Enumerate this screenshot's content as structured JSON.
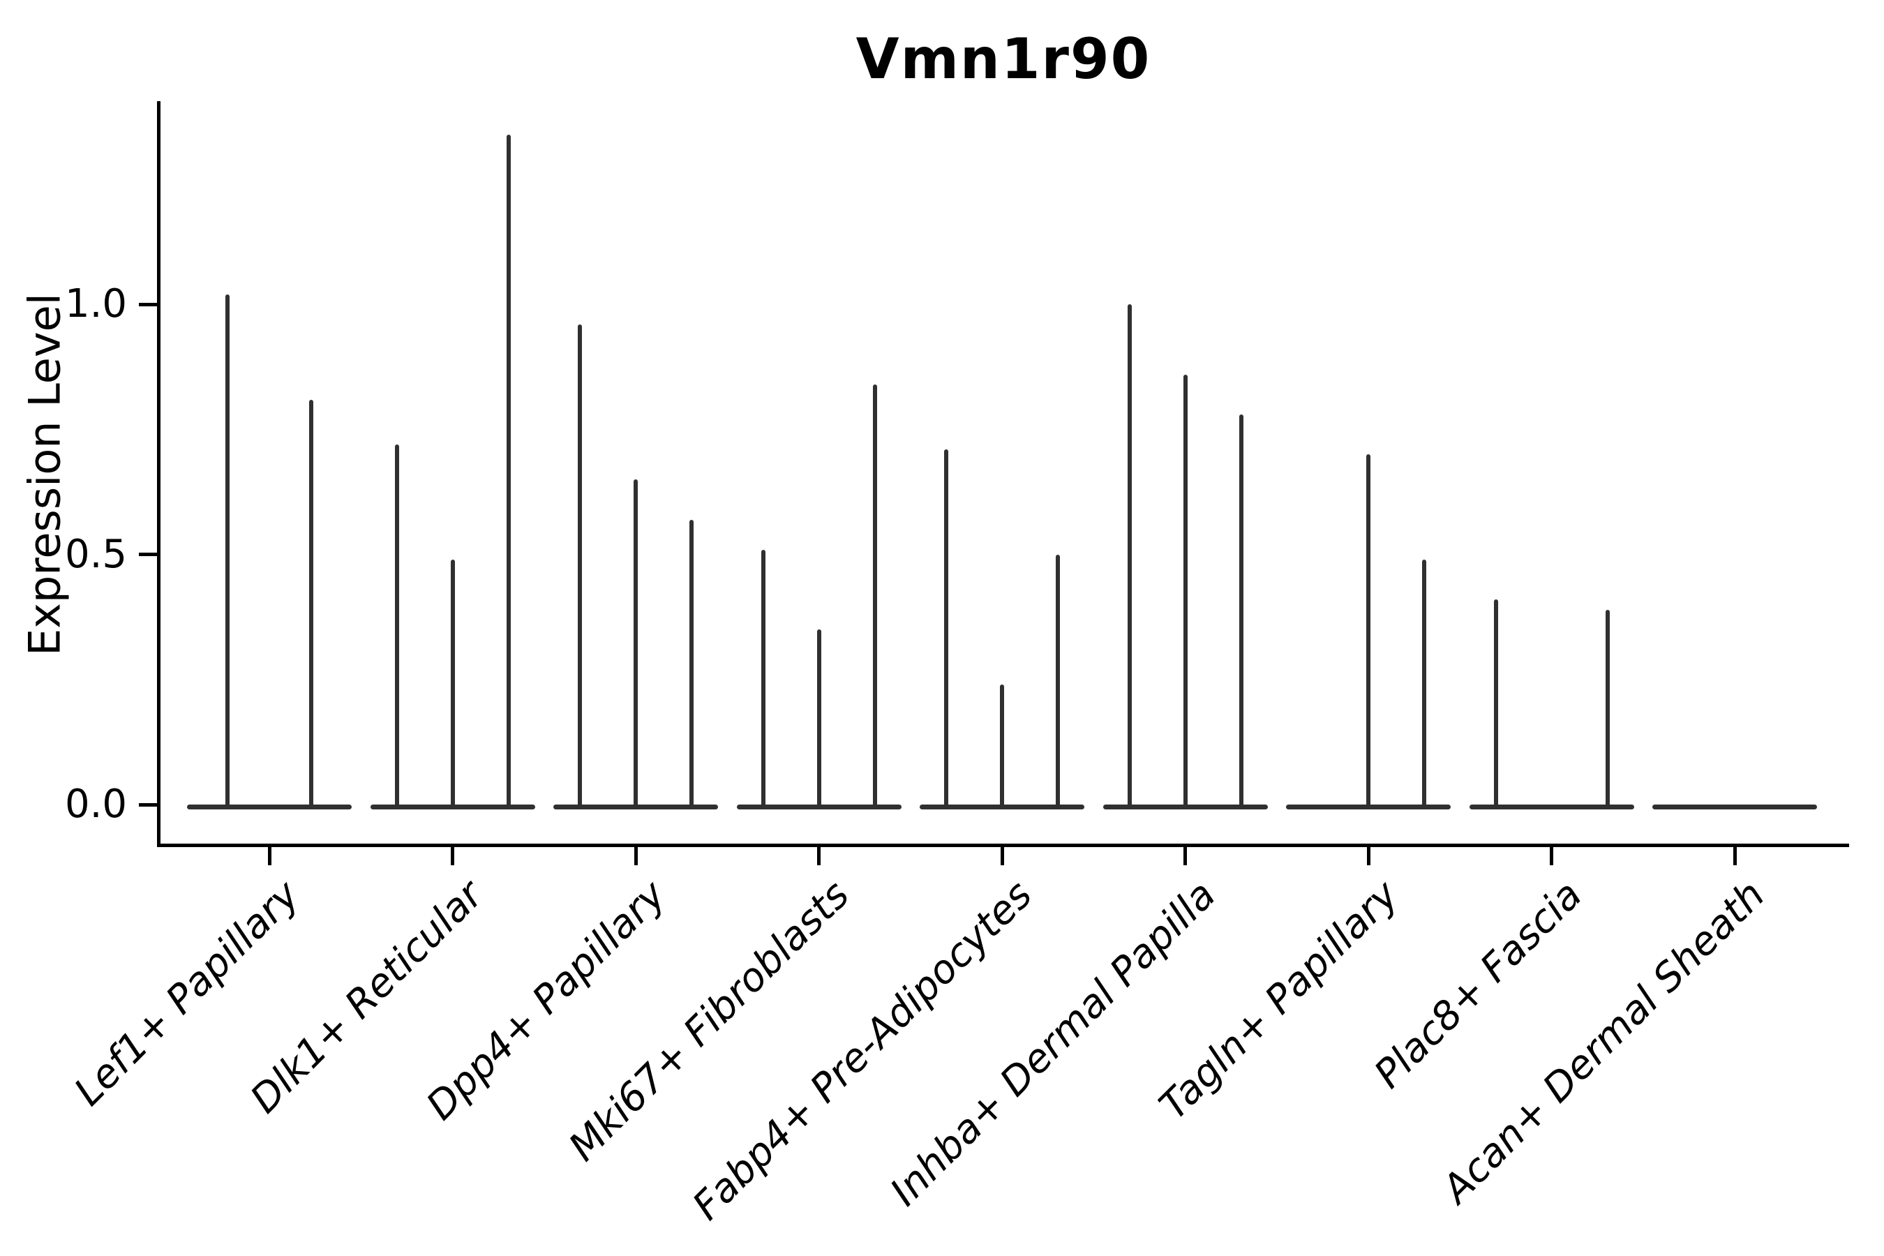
{
  "title": "Vmn1r90",
  "y_axis": {
    "label": "Expression Level",
    "tick_labels": [
      "0.0",
      "0.5",
      "1.0"
    ],
    "tick_values": [
      0.0,
      0.5,
      1.0
    ]
  },
  "chart_data": {
    "type": "violin",
    "title": "Vmn1r90",
    "xlabel": "",
    "ylabel": "Expression Level",
    "ylim": [
      0,
      1.4
    ],
    "yticks": [
      0.0,
      0.5,
      1.0
    ],
    "grid": false,
    "legend": "none",
    "description": "Needle-thin violin plot of Vmn1r90 expression; each cell-type category holds up to 3 split violins. violin_peaks lists the maximum expression height of each violin (0 = flat violin at zero expression).",
    "categories": [
      "Lef1+ Papillary",
      "Dlk1+ Reticular",
      "Dpp4+ Papillary",
      "Mki67+ Fibroblasts",
      "Fabp4+ Pre-Adipocytes",
      "Inhba+ Dermal Papilla",
      "Tagln+ Papillary",
      "Plac8+ Fascia",
      "Acan+ Dermal Sheath"
    ],
    "groups": [
      {
        "label": "Lef1+ Papillary",
        "violin_peaks": [
          1.02,
          0.81
        ]
      },
      {
        "label": "Dlk1+ Reticular",
        "violin_peaks": [
          0.72,
          0.49,
          1.34
        ]
      },
      {
        "label": "Dpp4+ Papillary",
        "violin_peaks": [
          0.96,
          0.65,
          0.57
        ]
      },
      {
        "label": "Mki67+ Fibroblasts",
        "violin_peaks": [
          0.51,
          0.35,
          0.84
        ]
      },
      {
        "label": "Fabp4+ Pre-Adipocytes",
        "violin_peaks": [
          0.71,
          0.24,
          0.5
        ]
      },
      {
        "label": "Inhba+ Dermal Papilla",
        "violin_peaks": [
          1.0,
          0.86,
          0.78
        ]
      },
      {
        "label": "Tagln+ Papillary",
        "violin_peaks": [
          0.0,
          0.7,
          0.49
        ]
      },
      {
        "label": "Plac8+ Fascia",
        "violin_peaks": [
          0.41,
          0.0,
          0.39
        ]
      },
      {
        "label": "Acan+ Dermal Sheath",
        "violin_peaks": [
          0.0,
          0.0,
          0.0
        ]
      }
    ],
    "colors": {
      "violin": "#303030",
      "axis": "#000000",
      "text": "#000000",
      "background": "#ffffff"
    }
  }
}
